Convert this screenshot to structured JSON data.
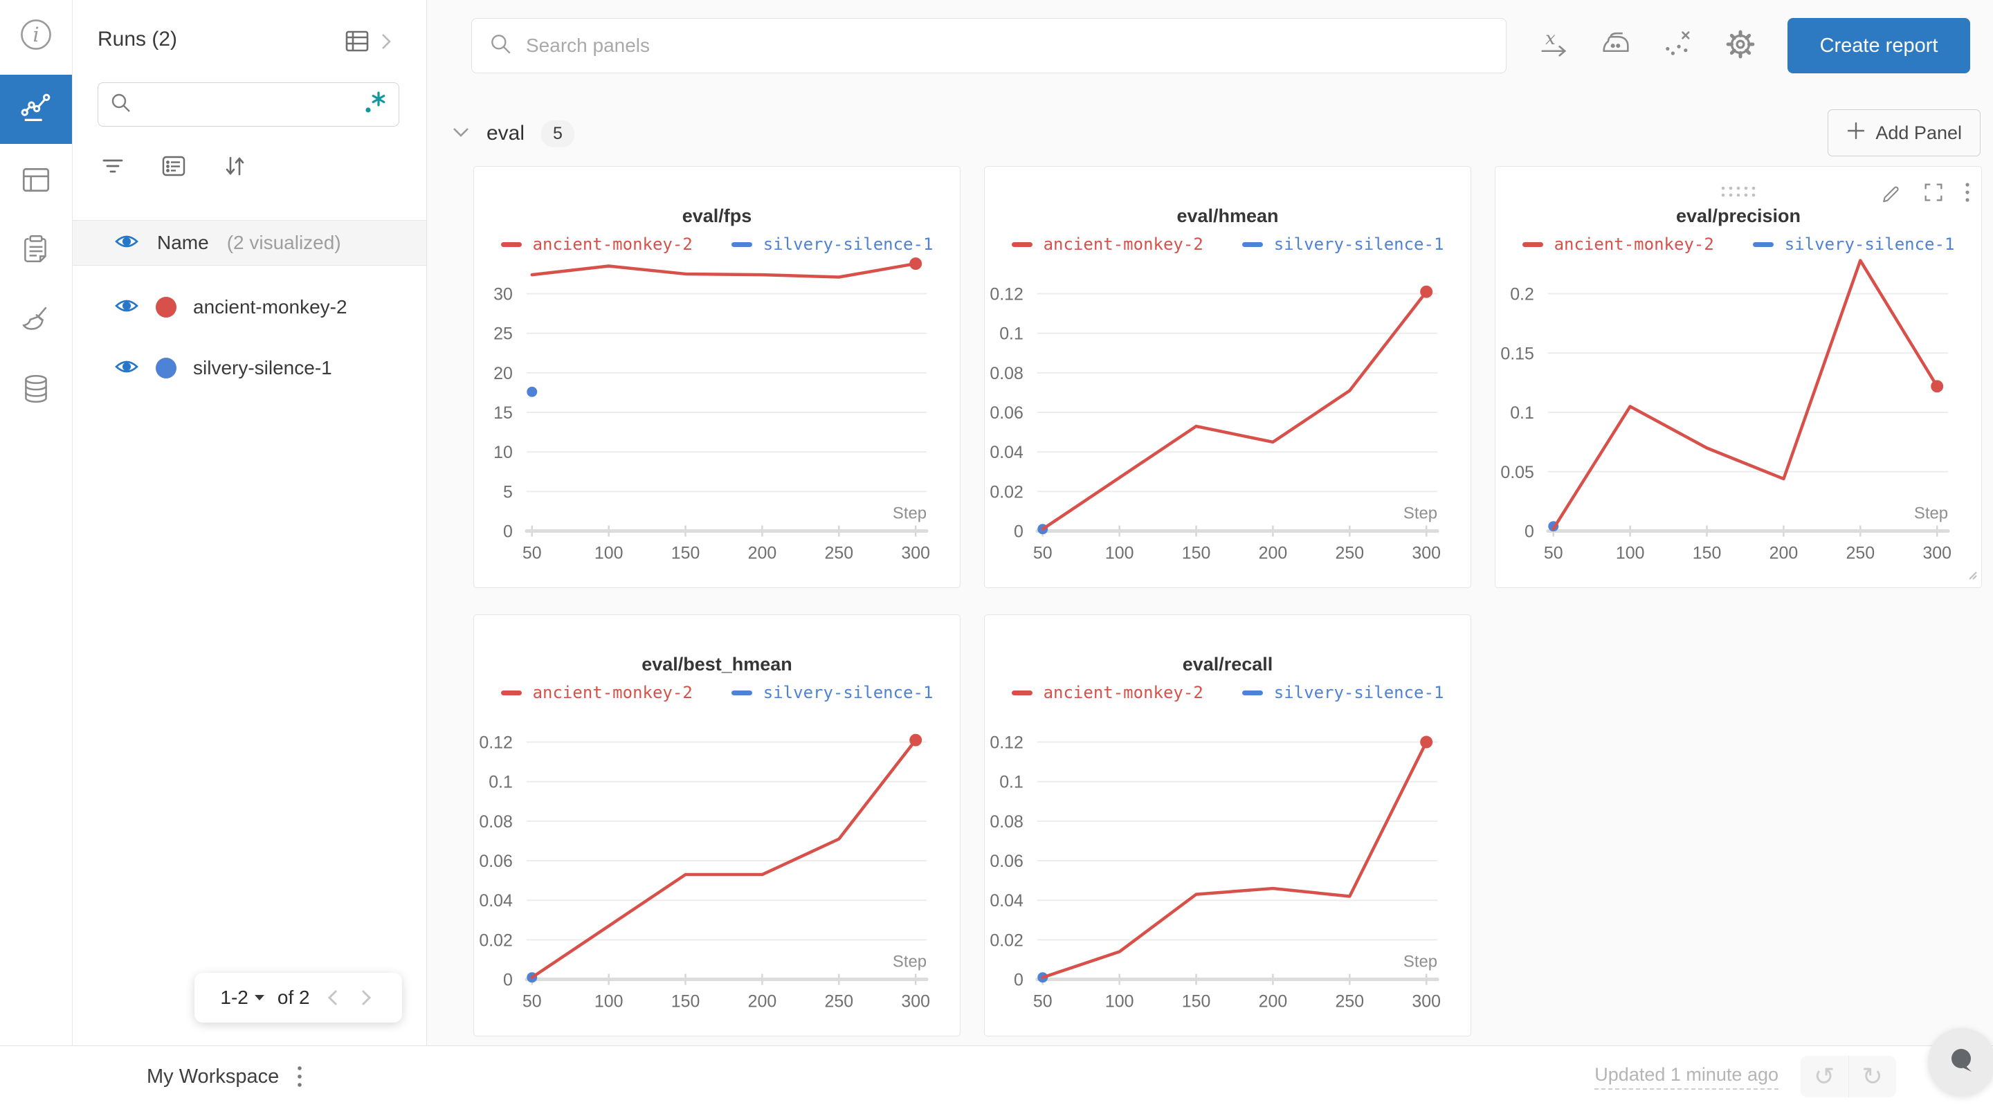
{
  "colors": {
    "red": "#d8504a",
    "blue": "#4d82d6",
    "accent": "#2e7ac2",
    "teal_regex": "#1697a0",
    "eye_blue": "#2676c9"
  },
  "nav": {
    "items": [
      "info",
      "workspace-charts",
      "runs-table",
      "reports",
      "sweeps",
      "artifacts"
    ],
    "active": "workspace-charts"
  },
  "runs_panel": {
    "title": "Runs (2)",
    "search_value": "",
    "regex_icon": ".*",
    "name_row": {
      "label": "Name",
      "suffix": "(2 visualized)"
    },
    "runs": [
      {
        "name": "ancient-monkey-2",
        "color": "#d8504a",
        "visible": true
      },
      {
        "name": "silvery-silence-1",
        "color": "#4d82d6",
        "visible": true
      }
    ],
    "pagination": {
      "range": "1-2",
      "of": "of 2"
    }
  },
  "topbar": {
    "search_placeholder": "Search panels",
    "icons": [
      "x-axis",
      "smoothing-iron",
      "outliers",
      "settings-gear"
    ],
    "create_report_label": "Create report"
  },
  "section": {
    "label": "eval",
    "badge": "5",
    "add_panel_label": "Add Panel"
  },
  "bottombar": {
    "workspace_label": "My Workspace",
    "updated_label": "Updated 1 minute ago"
  },
  "chart_data": [
    {
      "type": "line",
      "title": "eval/fps",
      "xlabel": "Step",
      "x": [
        50,
        100,
        150,
        200,
        250,
        300
      ],
      "x_ticks": [
        50,
        100,
        150,
        200,
        250,
        300
      ],
      "y_ticks": [
        {
          "v": 0,
          "label": "0"
        },
        {
          "v": 5,
          "label": "5"
        },
        {
          "v": 10,
          "label": "10"
        },
        {
          "v": 15,
          "label": "15"
        },
        {
          "v": 20,
          "label": "20"
        },
        {
          "v": 25,
          "label": "25"
        },
        {
          "v": 30,
          "label": "30"
        }
      ],
      "y_top": 30,
      "series": [
        {
          "name": "ancient-monkey-2",
          "color": "red",
          "values": [
            32.4,
            33.5,
            32.5,
            32.4,
            32.1,
            33.8
          ],
          "end_dot": true
        },
        {
          "name": "silvery-silence-1",
          "color": "blue",
          "points": [
            [
              50,
              17.6
            ]
          ]
        }
      ]
    },
    {
      "type": "line",
      "title": "eval/hmean",
      "xlabel": "Step",
      "x": [
        50,
        100,
        150,
        200,
        250,
        300
      ],
      "x_ticks": [
        50,
        100,
        150,
        200,
        250,
        300
      ],
      "y_ticks": [
        {
          "v": 0,
          "label": "0"
        },
        {
          "v": 0.02,
          "label": "0.02"
        },
        {
          "v": 0.04,
          "label": "0.04"
        },
        {
          "v": 0.06,
          "label": "0.06"
        },
        {
          "v": 0.08,
          "label": "0.08"
        },
        {
          "v": 0.1,
          "label": "0.1"
        },
        {
          "v": 0.12,
          "label": "0.12"
        }
      ],
      "y_top": 0.12,
      "series": [
        {
          "name": "ancient-monkey-2",
          "color": "red",
          "values": [
            0.001,
            0.027,
            0.053,
            0.045,
            0.071,
            0.121
          ],
          "end_dot": true
        },
        {
          "name": "silvery-silence-1",
          "color": "blue",
          "points": [
            [
              50,
              0.001
            ]
          ]
        }
      ]
    },
    {
      "type": "line",
      "title": "eval/precision",
      "xlabel": "Step",
      "x": [
        50,
        100,
        150,
        200,
        250,
        300
      ],
      "x_ticks": [
        50,
        100,
        150,
        200,
        250,
        300
      ],
      "y_ticks": [
        {
          "v": 0,
          "label": "0"
        },
        {
          "v": 0.05,
          "label": "0.05"
        },
        {
          "v": 0.1,
          "label": "0.1"
        },
        {
          "v": 0.15,
          "label": "0.15"
        },
        {
          "v": 0.2,
          "label": "0.2"
        }
      ],
      "y_top": 0.2,
      "series": [
        {
          "name": "ancient-monkey-2",
          "color": "red",
          "values": [
            0.002,
            0.105,
            0.07,
            0.044,
            0.228,
            0.122
          ],
          "end_dot": true
        },
        {
          "name": "silvery-silence-1",
          "color": "blue",
          "points": [
            [
              50,
              0.004
            ]
          ]
        }
      ]
    },
    {
      "type": "line",
      "title": "eval/best_hmean",
      "xlabel": "Step",
      "x": [
        50,
        100,
        150,
        200,
        250,
        300
      ],
      "x_ticks": [
        50,
        100,
        150,
        200,
        250,
        300
      ],
      "y_ticks": [
        {
          "v": 0,
          "label": "0"
        },
        {
          "v": 0.02,
          "label": "0.02"
        },
        {
          "v": 0.04,
          "label": "0.04"
        },
        {
          "v": 0.06,
          "label": "0.06"
        },
        {
          "v": 0.08,
          "label": "0.08"
        },
        {
          "v": 0.1,
          "label": "0.1"
        },
        {
          "v": 0.12,
          "label": "0.12"
        }
      ],
      "y_top": 0.12,
      "series": [
        {
          "name": "ancient-monkey-2",
          "color": "red",
          "values": [
            0.001,
            0.027,
            0.053,
            0.053,
            0.071,
            0.121
          ],
          "end_dot": true
        },
        {
          "name": "silvery-silence-1",
          "color": "blue",
          "points": [
            [
              50,
              0.001
            ]
          ]
        }
      ]
    },
    {
      "type": "line",
      "title": "eval/recall",
      "xlabel": "Step",
      "x": [
        50,
        100,
        150,
        200,
        250,
        300
      ],
      "x_ticks": [
        50,
        100,
        150,
        200,
        250,
        300
      ],
      "y_ticks": [
        {
          "v": 0,
          "label": "0"
        },
        {
          "v": 0.02,
          "label": "0.02"
        },
        {
          "v": 0.04,
          "label": "0.04"
        },
        {
          "v": 0.06,
          "label": "0.06"
        },
        {
          "v": 0.08,
          "label": "0.08"
        },
        {
          "v": 0.1,
          "label": "0.1"
        },
        {
          "v": 0.12,
          "label": "0.12"
        }
      ],
      "y_top": 0.12,
      "series": [
        {
          "name": "ancient-monkey-2",
          "color": "red",
          "values": [
            0.001,
            0.014,
            0.043,
            0.046,
            0.042,
            0.12
          ],
          "end_dot": true
        },
        {
          "name": "silvery-silence-1",
          "color": "blue",
          "points": [
            [
              50,
              0.001
            ]
          ]
        }
      ]
    }
  ]
}
